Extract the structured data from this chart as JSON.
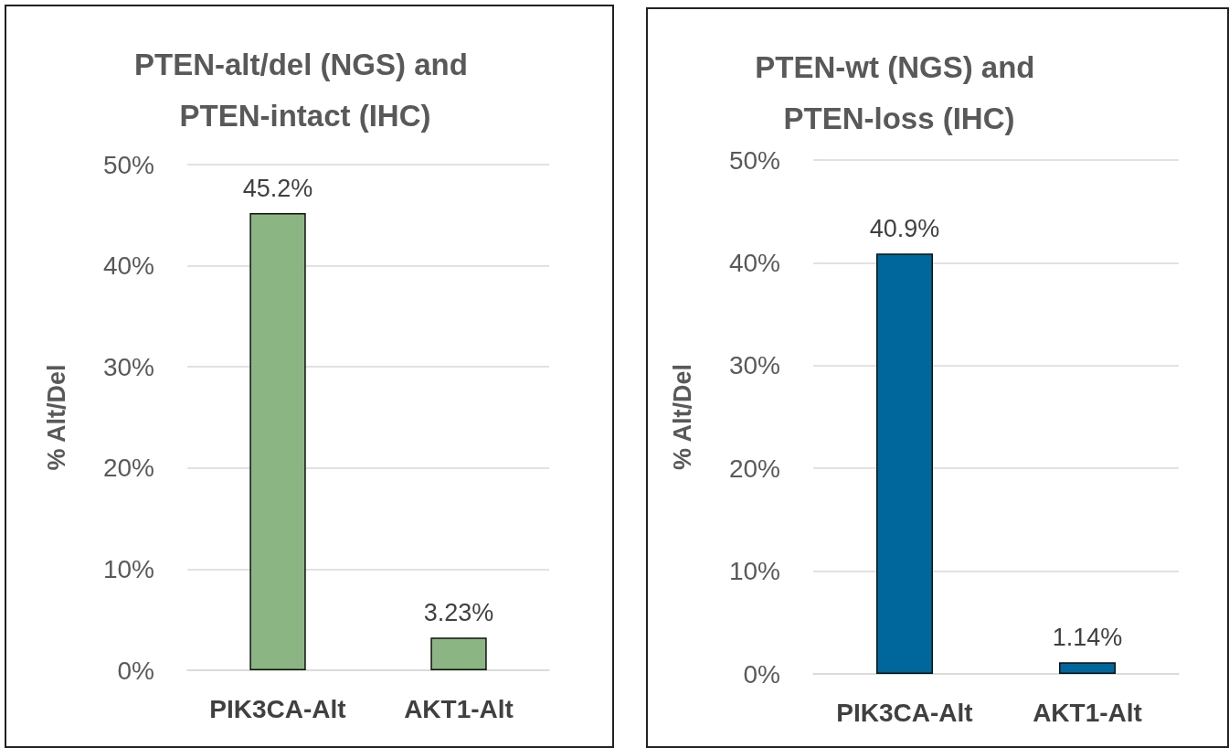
{
  "chart_data": [
    {
      "type": "bar",
      "title": "PTEN-alt/del (NGS) and PTEN-intact (IHC)",
      "ylabel": "% Alt/Del",
      "categories": [
        "PIK3CA-Alt",
        "AKT1-Alt"
      ],
      "series": [
        {
          "color": "#8bb583",
          "values": [
            45.2,
            3.23
          ],
          "value_labels": [
            "45.2%",
            "3.23%"
          ]
        }
      ],
      "ylim": [
        0,
        50
      ],
      "yticks": [
        {
          "value": 0,
          "label": "0%"
        },
        {
          "value": 10,
          "label": "10%"
        },
        {
          "value": 20,
          "label": "20%"
        },
        {
          "value": 30,
          "label": "30%"
        },
        {
          "value": 40,
          "label": "40%"
        },
        {
          "value": 50,
          "label": "50%"
        }
      ],
      "grid": "y"
    },
    {
      "type": "bar",
      "title": "PTEN-wt (NGS) and PTEN-loss (IHC)",
      "ylabel": "% Alt/Del",
      "categories": [
        "PIK3CA-Alt",
        "AKT1-Alt"
      ],
      "series": [
        {
          "color": "#00679c",
          "values": [
            40.9,
            1.14
          ],
          "value_labels": [
            "40.9%",
            "1.14%"
          ]
        }
      ],
      "ylim": [
        0,
        50
      ],
      "yticks": [
        {
          "value": 0,
          "label": "0%"
        },
        {
          "value": 10,
          "label": "10%"
        },
        {
          "value": 20,
          "label": "20%"
        },
        {
          "value": 30,
          "label": "30%"
        },
        {
          "value": 40,
          "label": "40%"
        },
        {
          "value": 50,
          "label": "50%"
        }
      ],
      "grid": "y"
    }
  ]
}
